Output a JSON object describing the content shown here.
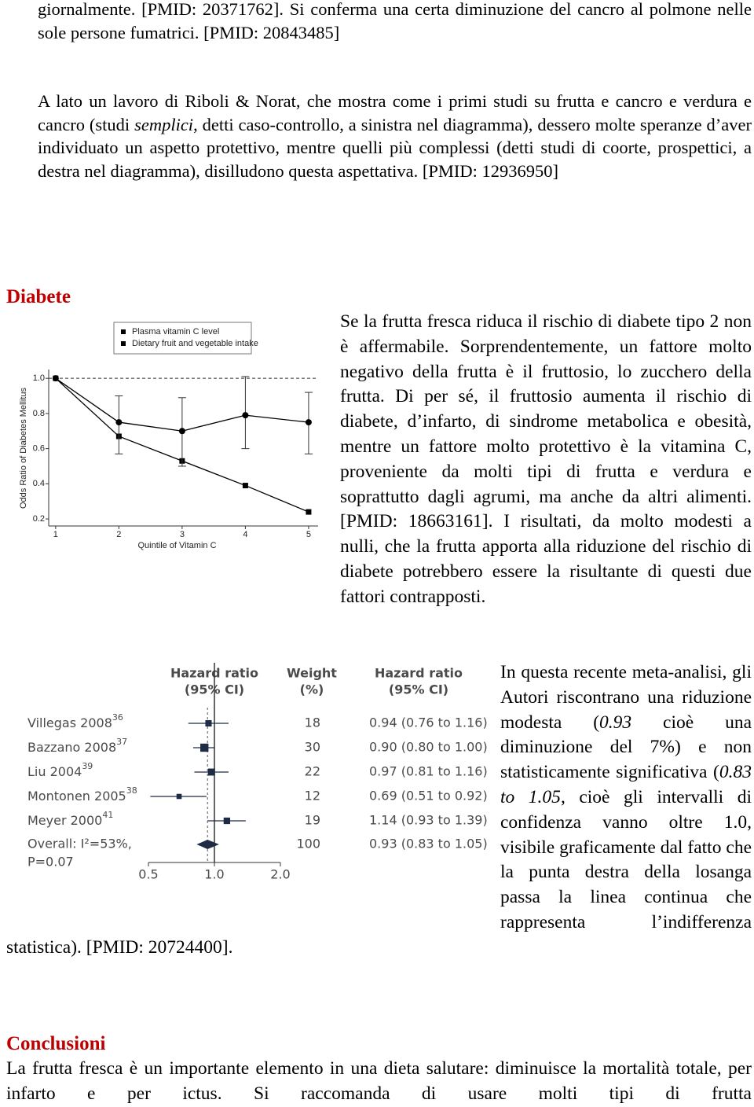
{
  "intro": {
    "p1": "giornalmente. [PMID: 20371762]. Si conferma una certa diminuzione del cancro al polmone nelle sole persone fumatrici. [PMID: 20843485]",
    "p2": [
      "A lato un lavoro di Riboli & Norat, che mostra come i primi studi su frutta e cancro e verdura e cancro (studi ",
      "semplici",
      ", detti caso-controllo, a sinistra nel diagramma), dessero molte speranze d’aver individuato un aspetto protettivo, mentre quelli più complessi (detti studi di coorte, prospettici, a destra nel diagramma), disilludono questa aspettativa. [PMID: 12936950]"
    ]
  },
  "diabete": {
    "heading": "Diabete",
    "text": "Se la frutta fresca riduca il rischio di diabete tipo 2 non è affermabile. Sorprendentemente, un fattore molto negativo della frutta è il fruttosio, lo zucchero della frutta. Di per sé, il fruttosio aumenta il rischio di diabete, d’infarto, di sindrome metabolica e obesità, mentre un fattore molto protettivo è la vitamina C, proveniente da molti tipi di frutta e verdura e soprattutto dagli agrumi, ma anche da altri alimenti. [PMID: 18663161]. I risultati, da molto modesti a nulli, che la frutta apporta alla riduzione del rischio di diabete potrebbero essere la risultante di questi due fattori contrapposti."
  },
  "meta": {
    "text": [
      "In questa recente meta-analisi, gli Autori riscontrano una riduzione modesta (",
      "0.93",
      " cioè una diminuzione del 7%) e non statisticamente significativa (",
      "0.83 to 1.05",
      ", cioè gli intervalli di confidenza vanno oltre 1.0, visibile graficamente dal fatto che la punta destra della losanga passa la linea continua che rappresenta l’indifferenza statistica). [PMID: 20724400]."
    ]
  },
  "conclusioni": {
    "heading": "Conclusioni",
    "text": "La frutta fresca è un importante elemento in una dieta salutare: diminuisce la mortalità totale, per infarto e per ictus. Si raccomanda di usare molti tipi di frutta"
  },
  "chart_data": [
    {
      "type": "line",
      "x_label": "Quintile of Vitamin C",
      "y_label": "Odds Ratio of Diabetes Mellitus",
      "x": [
        1,
        2,
        3,
        4,
        5
      ],
      "xlim": [
        0.89,
        5.15
      ],
      "xticks": [
        1,
        2,
        3,
        4,
        5
      ],
      "ylim": [
        0.16,
        1.05
      ],
      "yticks": [
        0.2,
        0.4,
        0.6,
        0.8,
        {
          "value": 1,
          "label": "1.0"
        }
      ],
      "reference_line": 1,
      "legend": "top",
      "series": [
        {
          "name": "Plasma vitamin C level",
          "color": "#000000",
          "marker": "square",
          "values": [
            1,
            0.67,
            0.53,
            0.39,
            0.24
          ]
        },
        {
          "name": "Dietary fruit and vegetable intake",
          "color": "#000000",
          "marker": "circle",
          "values": [
            1,
            0.75,
            0.7,
            0.79,
            0.75
          ],
          "lower": [
            null,
            0.57,
            0.5,
            0.6,
            0.57
          ],
          "upper": [
            null,
            0.9,
            0.89,
            1.01,
            0.92
          ]
        }
      ]
    },
    {
      "type": "forest",
      "headers": [
        [
          "Hazard ratio",
          "(95% CI)"
        ],
        [
          "Weight",
          "(%)"
        ],
        [
          "Hazard ratio",
          "(95% CI)"
        ]
      ],
      "categories": [
        "Villegas 2008",
        "Bazzano 2008",
        "Liu 2004",
        "Montonen 2005",
        "Meyer 2000"
      ],
      "refs": [
        "36",
        "37",
        "39",
        "38",
        "41"
      ],
      "weights": [
        18,
        30,
        22,
        12,
        19
      ],
      "values": [
        0.94,
        0.9,
        0.97,
        0.69,
        1.14
      ],
      "lower": [
        0.76,
        0.8,
        0.81,
        0.51,
        0.93
      ],
      "upper": [
        1.16,
        1,
        1.16,
        0.92,
        1.39
      ],
      "value_labels": [
        "0.94 (0.76 to 1.16)",
        "0.90 (0.80 to 1.00)",
        "0.97 (0.81 to 1.16)",
        "0.69 (0.51 to 0.92)",
        "1.14 (0.93 to 1.39)"
      ],
      "overall": {
        "label": "Overall: I²=53%,",
        "p_label": "P=0.07",
        "weight": 100,
        "value": 0.93,
        "lower": 0.83,
        "upper": 1.05,
        "value_label": "0.93 (0.83 to 1.05)"
      },
      "xscale": "log",
      "xlim": [
        0.5,
        2
      ],
      "xticks": [
        0.5,
        {
          "value": 1,
          "label": "1.0"
        },
        {
          "value": 2,
          "label": "2.0"
        }
      ],
      "reference_line": 1,
      "color": "#1f2a44"
    }
  ]
}
